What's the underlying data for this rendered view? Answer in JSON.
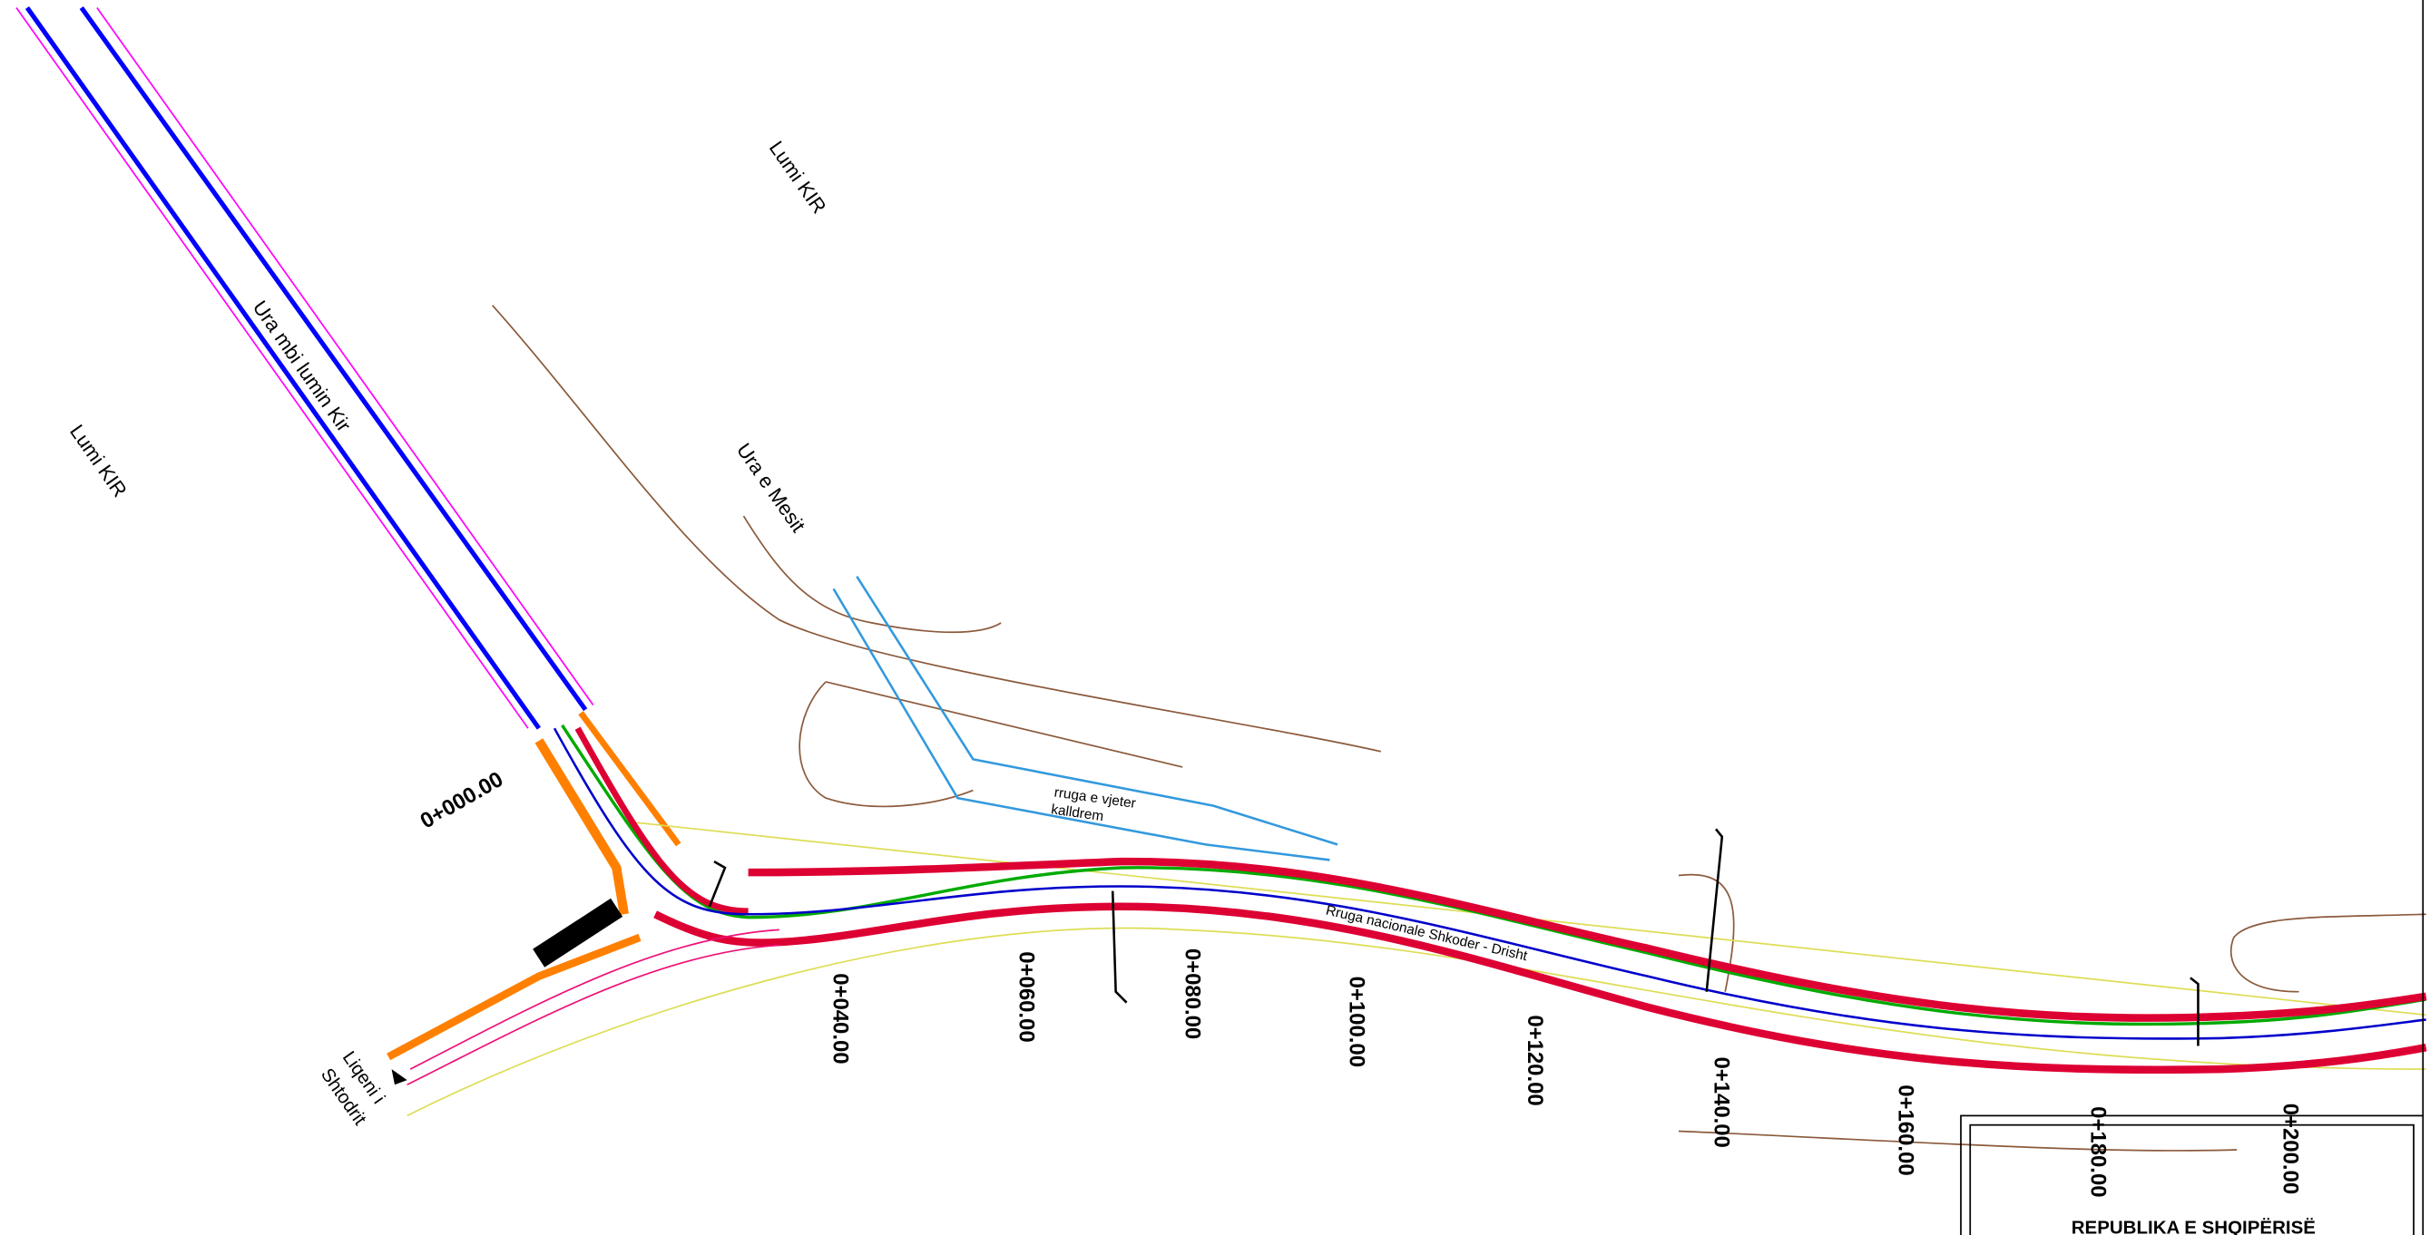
{
  "labels": {
    "river_top": "Lumi   KIR",
    "river_left": "Lumi   KIR",
    "bridge_kir": "Ura mbi lumin Kir",
    "bridge_mesit": "Ura e Mesit",
    "old_road": [
      "rruga e vjeter",
      "kalldrem"
    ],
    "national_road": "Rruga nacionale   Shkoder - Drisht",
    "lake": [
      "Liqeni i",
      "Shtodrit"
    ]
  },
  "stations": [
    "0+000.00",
    "0+040.00",
    "0+060.00",
    "0+080.00",
    "0+100.00",
    "0+120.00",
    "0+140.00",
    "0+160.00",
    "0+180.00",
    "0+200.00"
  ],
  "title_block": {
    "title": "REPUBLIKA E SHQIPËRISË"
  }
}
